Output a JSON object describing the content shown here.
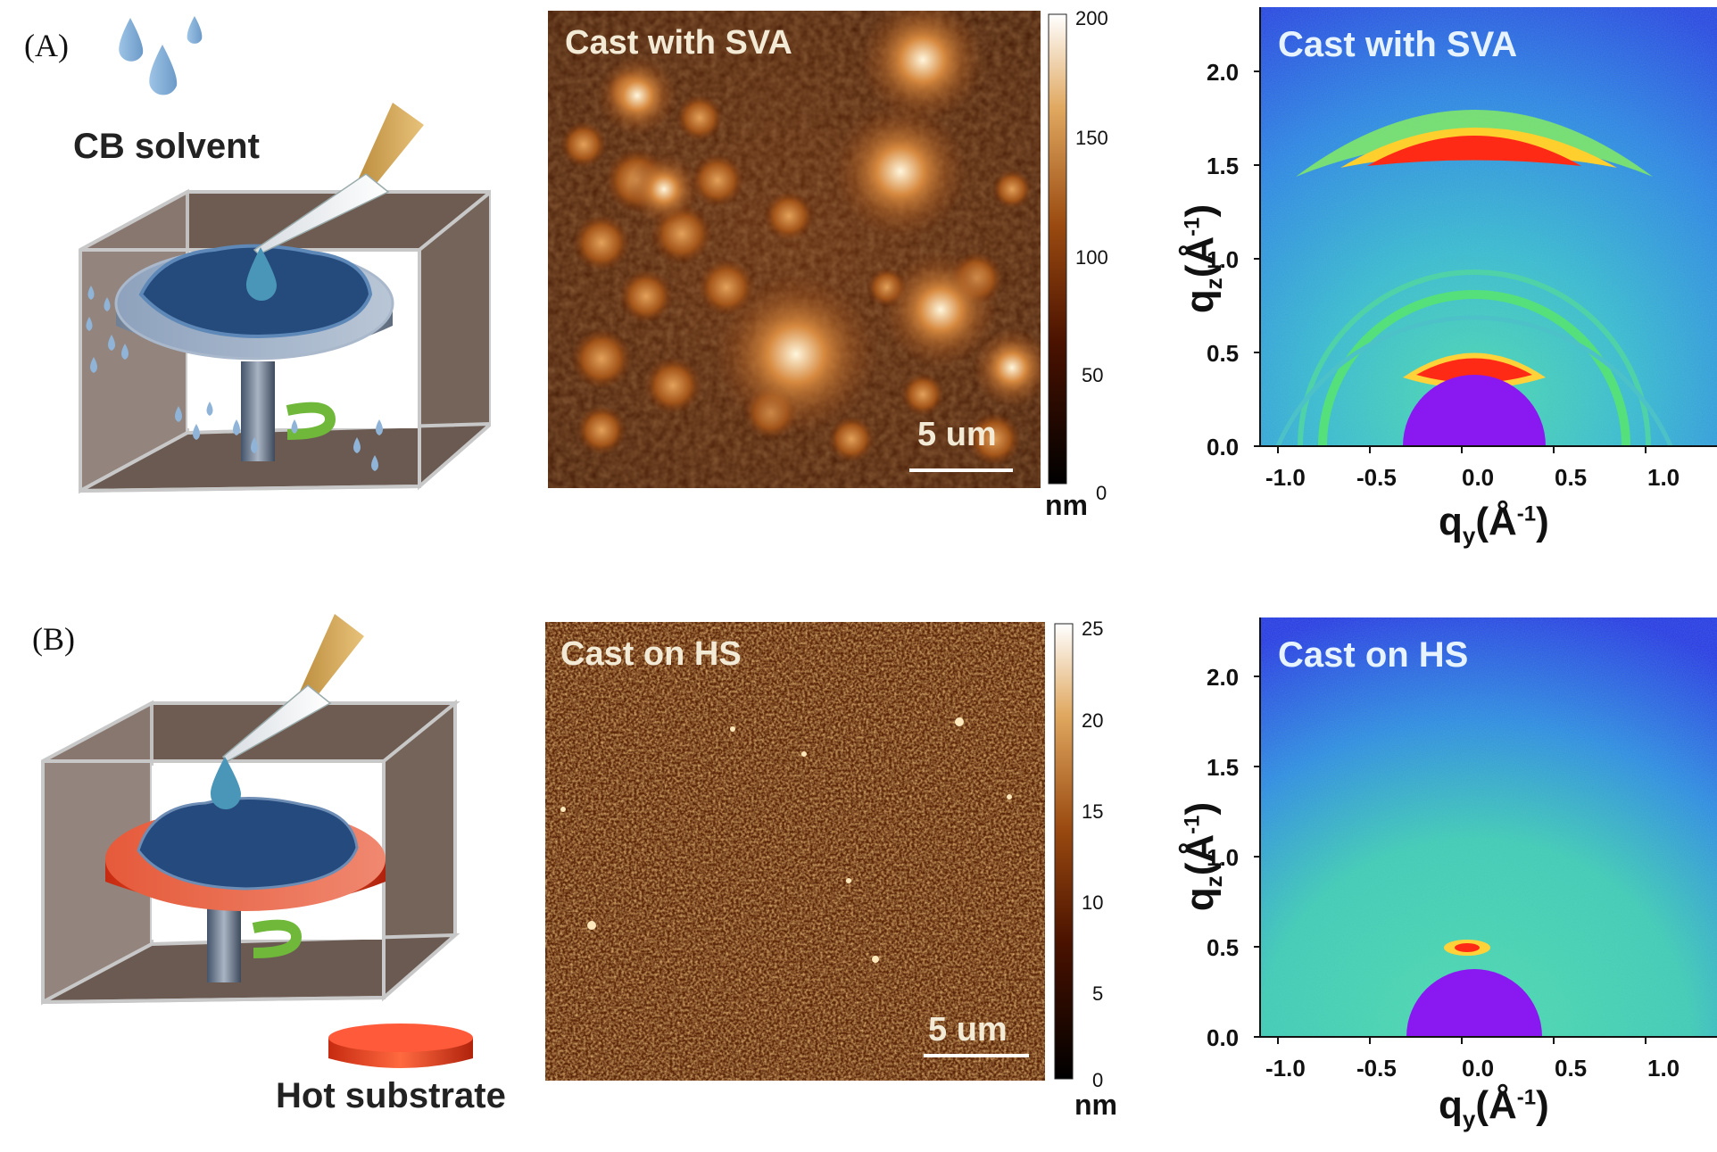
{
  "panel_a": {
    "label": "(A)",
    "solvent_label": "CB solvent",
    "afm": {
      "title": "Cast with SVA",
      "scalebar": "5 um",
      "colorbar_unit": "nm",
      "colorbar_ticks": [
        "200",
        "150",
        "100",
        "50",
        "0"
      ]
    },
    "giwaxs": {
      "title": "Cast with SVA",
      "x_ticks": [
        "-1.0",
        "-0.5",
        "0.0",
        "0.5",
        "1.0"
      ],
      "y_ticks": [
        "2.0",
        "1.5",
        "1.0",
        "0.5",
        "0.0"
      ],
      "x_label": "q",
      "x_sub": "y",
      "y_label": "q",
      "y_sub": "z",
      "axis_unit_base": "(Å",
      "axis_unit_exp": "-1",
      "axis_unit_close": ")"
    }
  },
  "panel_b": {
    "label": "(B)",
    "substrate_label": "Hot substrate",
    "afm": {
      "title": "Cast on HS",
      "scalebar": "5 um",
      "colorbar_unit": "nm",
      "colorbar_ticks": [
        "25",
        "20",
        "15",
        "10",
        "5",
        "0"
      ]
    },
    "giwaxs": {
      "title": "Cast on HS",
      "x_ticks": [
        "-1.0",
        "-0.5",
        "0.0",
        "0.5",
        "1.0"
      ],
      "y_ticks": [
        "2.0",
        "1.5",
        "1.0",
        "0.5",
        "0.0"
      ],
      "x_label": "q",
      "x_sub": "y",
      "y_label": "q",
      "y_sub": "z",
      "axis_unit_base": "(Å",
      "axis_unit_exp": "-1",
      "axis_unit_close": ")"
    }
  },
  "colors": {
    "afm_dark": "#3a1604",
    "afm_mid": "#8a3f0c",
    "afm_bright": "#ffe7b3",
    "gi_blue": "#2e3ce8",
    "gi_green": "#2fd9a0",
    "gi_red": "#ff2a16",
    "gi_purple": "#8a18f0",
    "chamber_wall": "#7a6a62",
    "dish_blue": "#2c4f80",
    "hot_red": "#f0391c"
  }
}
